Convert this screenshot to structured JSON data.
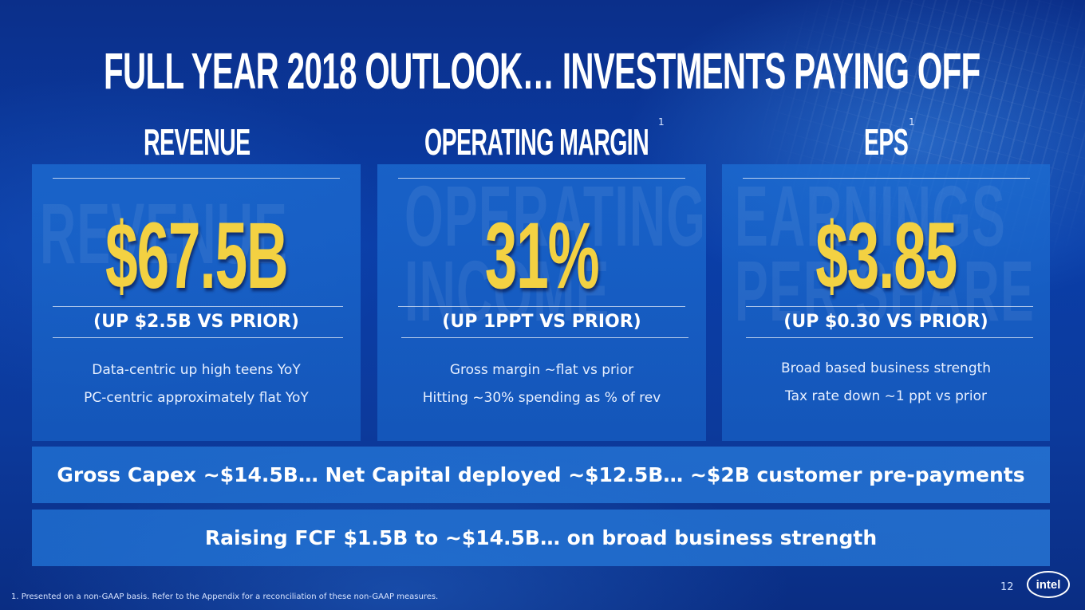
{
  "slide": {
    "title": "FULL YEAR 2018 OUTLOOK… INVESTMENTS PAYING OFF",
    "page_number": "12",
    "footnote": "1. Presented on a non-GAAP basis. Refer to the Appendix for a reconciliation of these non-GAAP measures.",
    "logo_text": "intel",
    "colors": {
      "highlight": "#f3d142",
      "background": "#0a3ea8",
      "card": "#1c6cd2"
    }
  },
  "columns": [
    {
      "heading": "REVENUE",
      "footnote_mark": "",
      "watermark": "REVENUE",
      "value": "$67.5B",
      "change": "(UP $2.5B VS PRIOR)",
      "lines": [
        "Data-centric up high teens YoY",
        "PC-centric approximately flat YoY"
      ]
    },
    {
      "heading": "OPERATING MARGIN",
      "footnote_mark": "1",
      "watermark": "OPERATING\nINCOME",
      "value": "31%",
      "change": "(UP 1PPT VS PRIOR)",
      "lines": [
        "Gross margin ~flat vs prior",
        "Hitting ~30% spending as % of rev"
      ]
    },
    {
      "heading": "EPS",
      "footnote_mark": "1",
      "watermark": "EARNINGS\nPER SHARE",
      "value": "$3.85",
      "change": "(UP $0.30 VS PRIOR)",
      "lines": [
        "Broad based business strength",
        "Tax rate down ~1 ppt vs prior"
      ]
    }
  ],
  "banners": [
    "Gross Capex ~$14.5B… Net Capital deployed ~$12.5B… ~$2B customer pre-payments",
    "Raising FCF $1.5B to ~$14.5B… on broad business strength"
  ]
}
